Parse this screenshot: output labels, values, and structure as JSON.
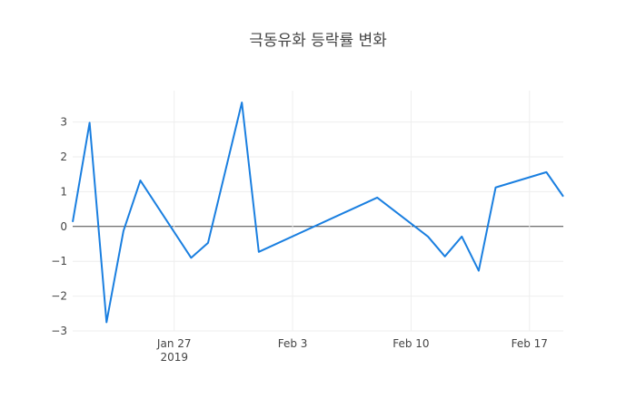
{
  "chart_data": {
    "type": "line",
    "title": "극동유화 등락률 변화",
    "x": [
      "2019-01-21",
      "2019-01-22",
      "2019-01-23",
      "2019-01-24",
      "2019-01-25",
      "2019-01-28",
      "2019-01-29",
      "2019-01-31",
      "2019-02-01",
      "2019-02-08",
      "2019-02-11",
      "2019-02-12",
      "2019-02-13",
      "2019-02-14",
      "2019-02-15",
      "2019-02-18",
      "2019-02-19"
    ],
    "series": [
      {
        "color": "#1a7fe0",
        "values": [
          0.13,
          2.98,
          -2.75,
          -0.13,
          1.32,
          -0.9,
          -0.47,
          3.56,
          -0.73,
          0.83,
          -0.29,
          -0.86,
          -0.29,
          -1.27,
          1.12,
          1.56,
          0.86
        ]
      }
    ],
    "xlim": [
      "2019-01-21",
      "2019-02-19"
    ],
    "xticks": [
      {
        "value": "2019-01-27",
        "label": "Jan 27\n2019"
      },
      {
        "value": "2019-02-03",
        "label": "Feb 3"
      },
      {
        "value": "2019-02-10",
        "label": "Feb 10"
      },
      {
        "value": "2019-02-17",
        "label": "Feb 17"
      }
    ],
    "ylim": [
      -3.0,
      3.9
    ],
    "yticks": [
      {
        "value": -3,
        "label": "−3"
      },
      {
        "value": -2,
        "label": "−2"
      },
      {
        "value": -1,
        "label": "−1"
      },
      0,
      1,
      2,
      3
    ],
    "grid": true
  }
}
